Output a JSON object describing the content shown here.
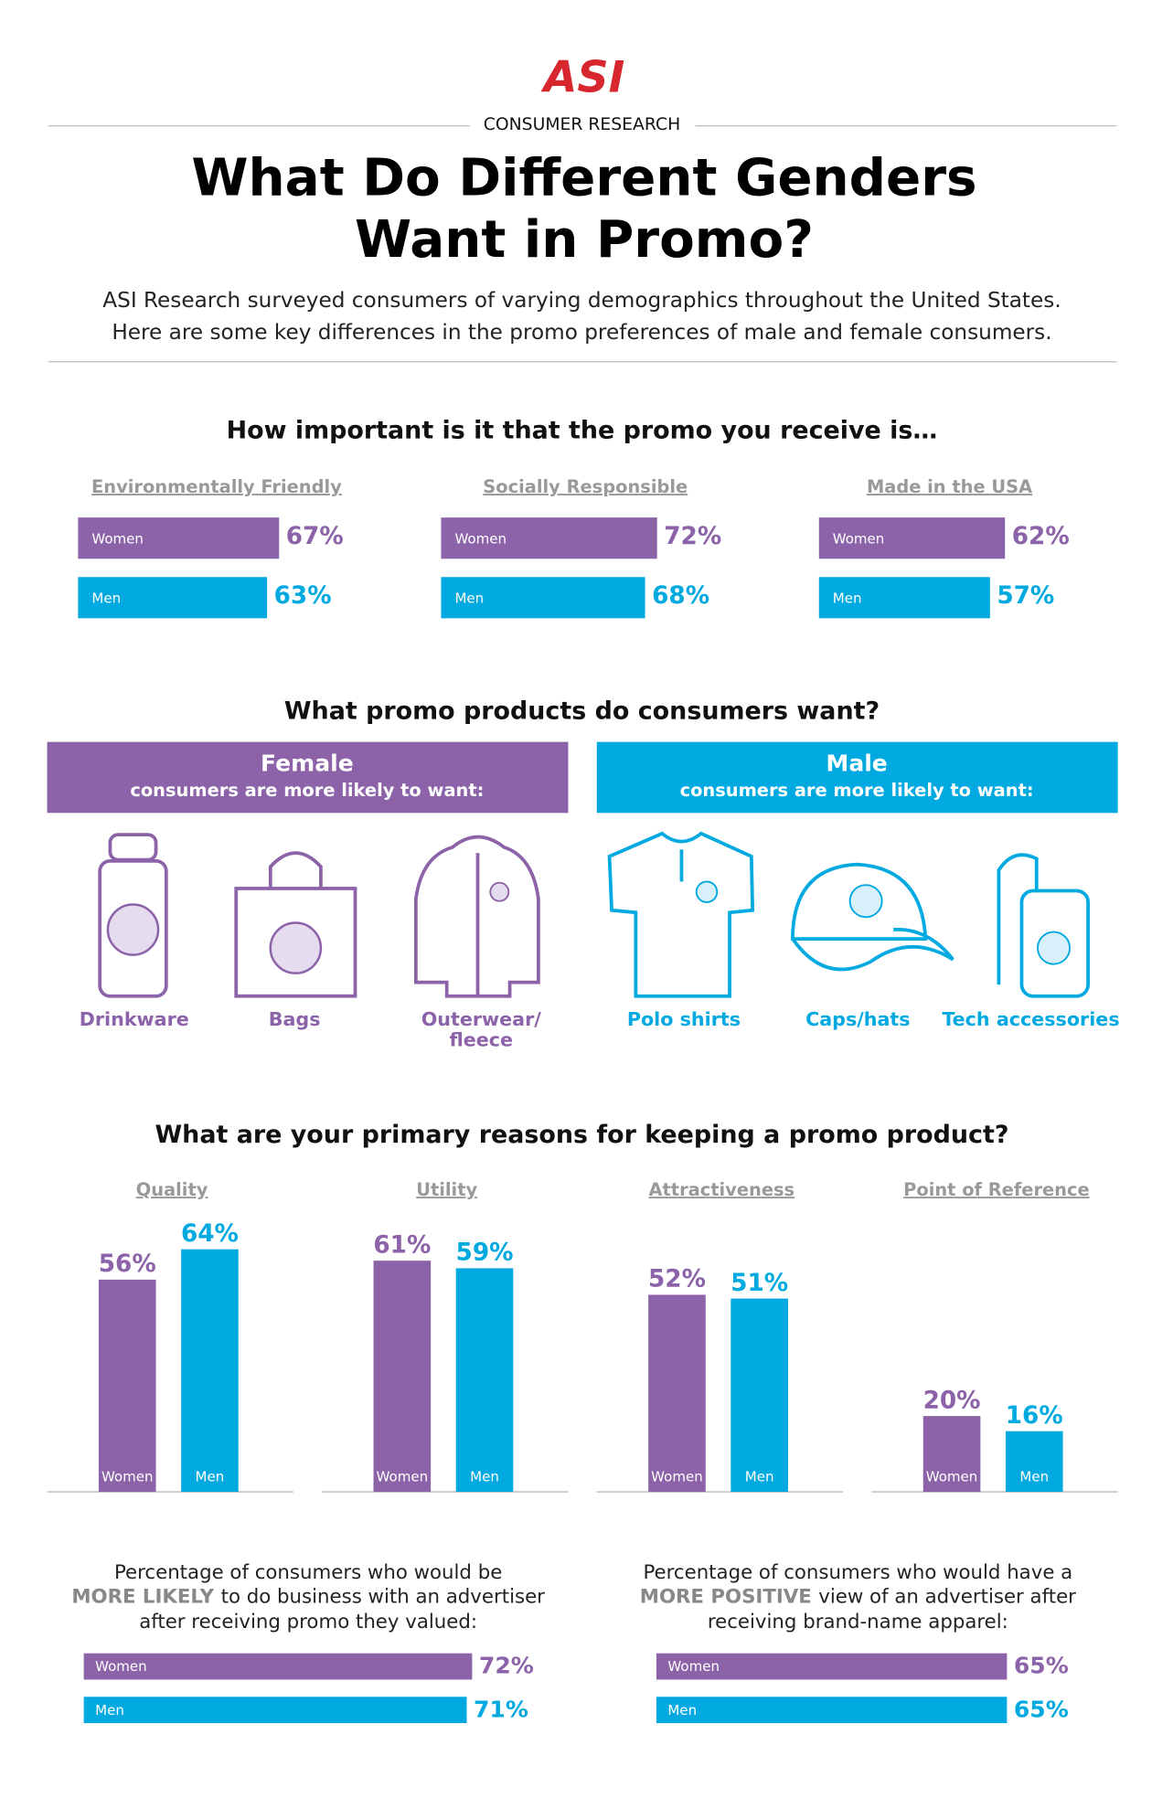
{
  "header": {
    "logo": "ASI",
    "kicker": "CONSUMER RESEARCH",
    "title": [
      "What Do Different Genders",
      "Want in Promo?"
    ],
    "intro": [
      "ASI Research surveyed consumers of varying demographics throughout the United States.",
      "Here are some key differences in the promo preferences of male and female consumers."
    ]
  },
  "sections": {
    "importance": "How important is it that the promo you receive is…",
    "products": "What promo products do consumers want?",
    "reasons": "What are your primary reasons for keeping a promo product?"
  },
  "products": {
    "female": {
      "name": "Female",
      "note": "consumers are more likely to want:",
      "items": [
        [
          "Drinkware"
        ],
        [
          "Bags"
        ],
        [
          "Outerwear/",
          "fleece"
        ]
      ]
    },
    "male": {
      "name": "Male",
      "note": "consumers are more likely to want:",
      "items": [
        [
          "Polo shirts"
        ],
        [
          "Caps/hats"
        ],
        [
          "Tech accessories"
        ]
      ]
    }
  },
  "chart_data": [
    {
      "type": "bar",
      "orientation": "horizontal",
      "title": "Environmentally Friendly",
      "series": [
        {
          "name": "Women",
          "color": "#8c63a9",
          "values": [
            67
          ],
          "value_labels": [
            "67%"
          ]
        },
        {
          "name": "Men",
          "color": "#00a9e0",
          "values": [
            63
          ],
          "value_labels": [
            "63%"
          ]
        }
      ]
    },
    {
      "type": "bar",
      "orientation": "horizontal",
      "title": "Socially Responsible",
      "series": [
        {
          "name": "Women",
          "color": "#8c63a9",
          "values": [
            72
          ],
          "value_labels": [
            "72%"
          ]
        },
        {
          "name": "Men",
          "color": "#00a9e0",
          "values": [
            68
          ],
          "value_labels": [
            "68%"
          ]
        }
      ]
    },
    {
      "type": "bar",
      "orientation": "horizontal",
      "title": "Made in the USA",
      "series": [
        {
          "name": "Women",
          "color": "#8c63a9",
          "values": [
            62
          ],
          "value_labels": [
            "62%"
          ]
        },
        {
          "name": "Men",
          "color": "#00a9e0",
          "values": [
            57
          ],
          "value_labels": [
            "57%"
          ]
        }
      ]
    },
    {
      "type": "bar",
      "orientation": "vertical",
      "title": "Quality",
      "series": [
        {
          "name": "Women",
          "color": "#8c63a9",
          "values": [
            56
          ],
          "value_labels": [
            "56%"
          ]
        },
        {
          "name": "Men",
          "color": "#00a9e0",
          "values": [
            64
          ],
          "value_labels": [
            "64%"
          ]
        }
      ]
    },
    {
      "type": "bar",
      "orientation": "vertical",
      "title": "Utility",
      "series": [
        {
          "name": "Women",
          "color": "#8c63a9",
          "values": [
            61
          ],
          "value_labels": [
            "61%"
          ]
        },
        {
          "name": "Men",
          "color": "#00a9e0",
          "values": [
            59
          ],
          "value_labels": [
            "59%"
          ]
        }
      ]
    },
    {
      "type": "bar",
      "orientation": "vertical",
      "title": "Attractiveness",
      "series": [
        {
          "name": "Women",
          "color": "#8c63a9",
          "values": [
            52
          ],
          "value_labels": [
            "52%"
          ]
        },
        {
          "name": "Men",
          "color": "#00a9e0",
          "values": [
            51
          ],
          "value_labels": [
            "51%"
          ]
        }
      ]
    },
    {
      "type": "bar",
      "orientation": "vertical",
      "title": "Point of Reference",
      "series": [
        {
          "name": "Women",
          "color": "#8c63a9",
          "values": [
            20
          ],
          "value_labels": [
            "20%"
          ]
        },
        {
          "name": "Men",
          "color": "#00a9e0",
          "values": [
            16
          ],
          "value_labels": [
            "16%"
          ]
        }
      ]
    },
    {
      "type": "bar",
      "orientation": "horizontal",
      "title": "Percentage of consumers who would be",
      "emphasis": "MORE LIKELY",
      "title_rest": [
        "to do business with an advertiser",
        "after receiving promo they valued:"
      ],
      "series": [
        {
          "name": "Women",
          "color": "#8c63a9",
          "values": [
            72
          ],
          "value_labels": [
            "72%"
          ]
        },
        {
          "name": "Men",
          "color": "#00a9e0",
          "values": [
            71
          ],
          "value_labels": [
            "71%"
          ]
        }
      ]
    },
    {
      "type": "bar",
      "orientation": "horizontal",
      "title": "Percentage of consumers who would have a",
      "emphasis": "MORE POSITIVE",
      "title_rest": [
        "view of an advertiser after",
        "receiving brand-name apparel:"
      ],
      "series": [
        {
          "name": "Women",
          "color": "#8c63a9",
          "values": [
            65
          ],
          "value_labels": [
            "65%"
          ]
        },
        {
          "name": "Men",
          "color": "#00a9e0",
          "values": [
            65
          ],
          "value_labels": [
            "65%"
          ]
        }
      ]
    }
  ]
}
